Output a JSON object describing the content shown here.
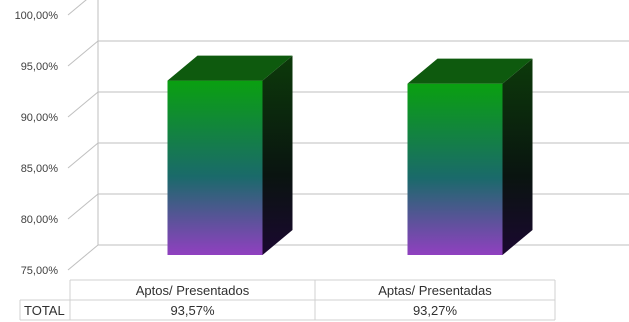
{
  "chart_data": {
    "type": "bar",
    "style": "3d-column",
    "categories": [
      "Aptos/ Presentados",
      "Aptas/ Presentadas"
    ],
    "series": [
      {
        "values": [
          93.57,
          93.27
        ],
        "value_labels": [
          "93,57%",
          "93,27%"
        ]
      }
    ],
    "ylim": [
      75,
      100
    ],
    "y_ticks": [
      "75,00%",
      "80,00%",
      "85,00%",
      "90,00%",
      "95,00%",
      "100,00%"
    ],
    "grid": true,
    "legend": "none",
    "data_table": {
      "row_label": "TOTAL",
      "values": [
        "93,57%",
        "93,27%"
      ]
    },
    "colors": {
      "bar_top_gradient": "#0aa010",
      "bar_mid_gradient": "#1a6a6a",
      "bar_bottom_gradient": "#9040c0",
      "bar_side": "#0b1e08",
      "bar_cap": "#0e5a0e",
      "gridline": "#bfbfbf",
      "axis_text": "#404040"
    }
  }
}
